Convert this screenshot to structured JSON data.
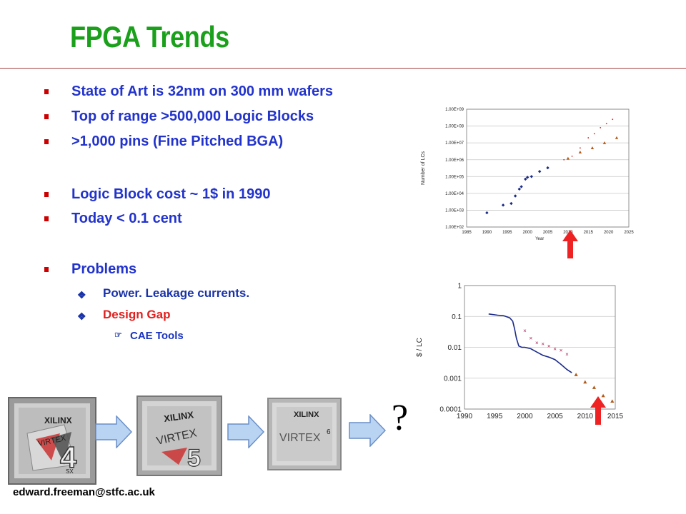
{
  "slide": {
    "title": "FPGA Trends",
    "footer": "edward.freeman@stfc.ac.uk",
    "question_mark": "?",
    "colors": {
      "title": "#1aa01a",
      "bullet_text": "#2233cc",
      "bullet_marker": "#cc0000",
      "highlight": "#e02020"
    }
  },
  "bullets": [
    {
      "text": "State of Art is 32nm on 300 mm wafers"
    },
    {
      "text": "Top of range >500,000 Logic Blocks"
    },
    {
      "text": ">1,000 pins (Fine Pitched BGA)"
    },
    {
      "text": "Logic Block cost ~ 1$ in 1990"
    },
    {
      "text": "Today < 0.1 cent"
    },
    {
      "text": "Problems"
    }
  ],
  "sub_bullets": [
    {
      "text": "Power. Leakage currents.",
      "color": "#1a33a8"
    },
    {
      "text": "Design Gap",
      "color": "#e02020"
    }
  ],
  "sub_sub_bullets": [
    {
      "text": "CAE Tools"
    }
  ],
  "chips": [
    {
      "brand": "XILINX",
      "model": "VIRTEX",
      "generation": "4",
      "suffix": "SX"
    },
    {
      "brand": "XILINX",
      "model": "VIRTEX",
      "generation": "5"
    },
    {
      "brand": "XILINX",
      "model": "VIRTEX",
      "generation": "6"
    }
  ],
  "icons": {
    "bullet": "square-bullet-icon",
    "sub_bullet": "diamond-bullet-icon",
    "sub_sub_bullet": "pointing-hand-icon",
    "flow": "right-arrow-icon",
    "marker": "up-arrow-icon"
  },
  "chart_data": [
    {
      "type": "scatter",
      "xlabel": "Year",
      "ylabel": "Number of LCs",
      "yscale": "log",
      "xlim": [
        1985,
        2025
      ],
      "ylim": [
        100,
        1000000000
      ],
      "xticks": [
        "1985",
        "1990",
        "1995",
        "2000",
        "2005",
        "2010",
        "2015",
        "2020",
        "2025"
      ],
      "yticks": [
        "1.00E+02",
        "1.00E+03",
        "1.00E+04",
        "1.00E+05",
        "1.00E+06",
        "1.00E+07",
        "1.00E+08",
        "1.00E+09"
      ],
      "grid": true,
      "series": [
        {
          "color": "#1a2a8a",
          "marker": "diamond",
          "x": [
            1990,
            1994,
            1996,
            1997,
            1998,
            1998.5,
            1999.5,
            2000,
            2001,
            2003,
            2005
          ],
          "y": [
            700,
            2000,
            2500,
            7000,
            18000,
            25000,
            70000,
            90000,
            100000,
            200000,
            330000
          ]
        },
        {
          "color": "#b05a1a",
          "marker": "triangle",
          "x": [
            2010,
            2013,
            2016,
            2019,
            2022
          ],
          "y": [
            1200000,
            2800000,
            5000000,
            10000000,
            20000000
          ]
        },
        {
          "color": "#cc2222",
          "marker": "dot",
          "x": [
            2009,
            2011,
            2013,
            2015,
            2016.5,
            2018,
            2019.5,
            2021
          ],
          "y": [
            1000000,
            1600000,
            5000000,
            20000000,
            35000000,
            80000000,
            140000000,
            250000000
          ]
        }
      ]
    },
    {
      "type": "line",
      "xlabel": "",
      "ylabel": "$ / LC",
      "yscale": "log",
      "xlim": [
        1990,
        2015
      ],
      "ylim": [
        0.0001,
        1
      ],
      "xticks": [
        "1990",
        "1995",
        "2000",
        "2005",
        "2010",
        "2015"
      ],
      "yticks": [
        "1",
        "0.1",
        "0.01",
        "0.001",
        "0.0001"
      ],
      "grid": true,
      "series": [
        {
          "color": "#1a2a8a",
          "type": "line",
          "x": [
            1994,
            1995.5,
            1996.5,
            1997.5,
            1998,
            1998.3,
            1998.6,
            1999,
            1999.5,
            2000,
            2001,
            2002,
            2003,
            2004,
            2005,
            2006,
            2007,
            2007.8
          ],
          "y": [
            0.12,
            0.11,
            0.105,
            0.09,
            0.07,
            0.04,
            0.02,
            0.011,
            0.01,
            0.01,
            0.009,
            0.007,
            0.0055,
            0.0048,
            0.004,
            0.0028,
            0.0019,
            0.0015
          ]
        },
        {
          "color": "#aa2255",
          "type": "scatter",
          "marker": "cross",
          "x": [
            2000,
            2001,
            2002,
            2003,
            2004,
            2005,
            2006,
            2007
          ],
          "y": [
            0.035,
            0.02,
            0.014,
            0.013,
            0.011,
            0.009,
            0.008,
            0.006
          ]
        },
        {
          "color": "#b05a1a",
          "type": "scatter",
          "marker": "triangle",
          "x": [
            2008.5,
            2010,
            2011.5,
            2013,
            2014.5
          ],
          "y": [
            0.0013,
            0.00075,
            0.0005,
            0.00027,
            0.00018
          ]
        }
      ]
    }
  ]
}
